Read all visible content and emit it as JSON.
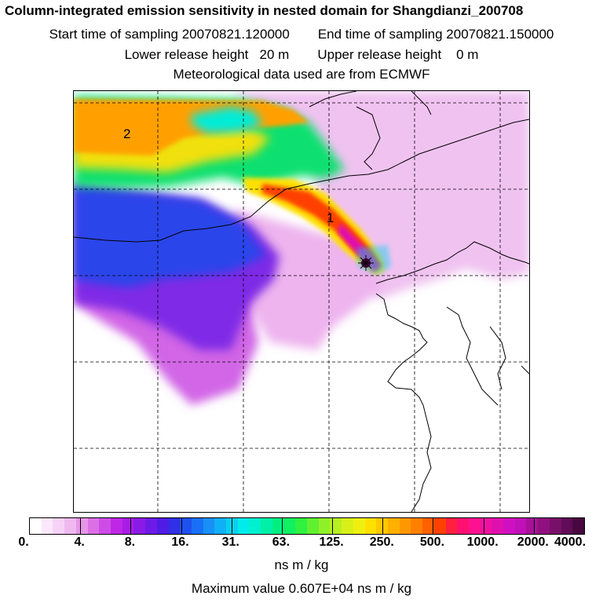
{
  "header": {
    "title": "Column-integrated emission sensitivity in nested domain for Shangdianzi_200708",
    "start_label": "Start time of sampling 20070821.120000",
    "end_label": "End time of sampling 20070821.150000",
    "lower_label": "Lower release height   20 m",
    "upper_label": "Upper release height    0 m",
    "met_label": "Meteorological data used are from ECMWF"
  },
  "map": {
    "labels": [
      {
        "text": "2"
      },
      {
        "text": "1"
      }
    ]
  },
  "colorbar": {
    "ticks": [
      "0.",
      "4.",
      "8.",
      "16.",
      "31.",
      "63.",
      "125.",
      "250.",
      "500.",
      "1000.",
      "2000.",
      "4000."
    ],
    "colors": [
      "#ffffff",
      "#fbe8fb",
      "#f6d2f6",
      "#efb8ef",
      "#e796e7",
      "#dc6fe6",
      "#cf4be6",
      "#bf27e6",
      "#a71de6",
      "#8a1ae6",
      "#6d1ae6",
      "#4f1ce6",
      "#3030e6",
      "#1f50f0",
      "#1870f6",
      "#1890f6",
      "#10b0f6",
      "#08d0f0",
      "#00ecec",
      "#00f0d0",
      "#00f0a8",
      "#00f080",
      "#10f060",
      "#30f040",
      "#60f030",
      "#90f028",
      "#b8f020",
      "#d8f018",
      "#f0f010",
      "#ffe000",
      "#ffc800",
      "#ffb000",
      "#ff9800",
      "#ff8000",
      "#ff6000",
      "#ff4000",
      "#ff2040",
      "#ff1070",
      "#ff1090",
      "#f010a0",
      "#e010b0",
      "#d010c0",
      "#c010b8",
      "#a81098",
      "#901080",
      "#78106a",
      "#600c58",
      "#48083f"
    ],
    "units": "ns m / kg",
    "max_value": "Maximum value  0.607E+04 ns m / kg"
  }
}
